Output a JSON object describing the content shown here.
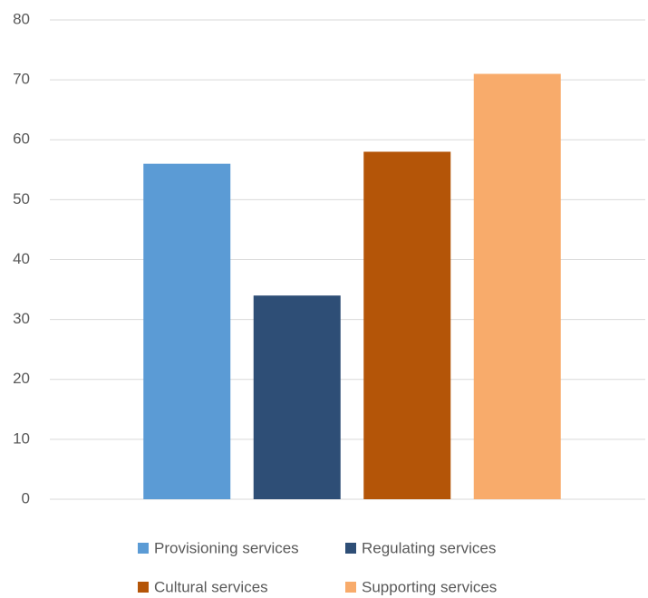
{
  "chart_data": {
    "type": "bar",
    "categories": [
      null
    ],
    "series": [
      {
        "name": "Provisioning services",
        "color": "#5b9bd5",
        "values": [
          56
        ]
      },
      {
        "name": "Regulating services",
        "color": "#2e4e76",
        "values": [
          34
        ]
      },
      {
        "name": "Cultural services",
        "color": "#b45508",
        "values": [
          58
        ]
      },
      {
        "name": "Supporting services",
        "color": "#f8ab6b",
        "values": [
          71
        ]
      }
    ],
    "ylim": [
      0,
      80
    ],
    "yticks": [
      0,
      10,
      20,
      30,
      40,
      50,
      60,
      70,
      80
    ],
    "grid": true,
    "legend": "bottom"
  }
}
